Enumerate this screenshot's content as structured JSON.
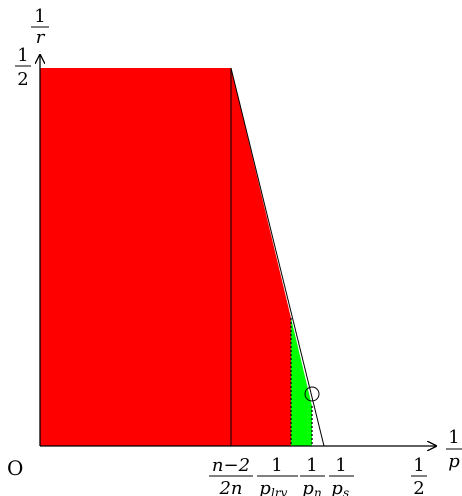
{
  "origin_label": "O",
  "y_axis": {
    "num": "1",
    "den": "r"
  },
  "x_axis": {
    "num": "1",
    "den": "p"
  },
  "y_tick": {
    "num": "1",
    "den": "2"
  },
  "x_ticks": [
    {
      "num": "n−2",
      "den": "2n"
    },
    {
      "num": "1",
      "den_main": "p",
      "den_sub": "lrv"
    },
    {
      "num": "1",
      "den_main": "p",
      "den_sub": "n"
    },
    {
      "num": "1",
      "den_main": "p",
      "den_sub": "s"
    },
    {
      "num": "1",
      "den": "2"
    }
  ],
  "colors": {
    "red_region": "#ff0000",
    "green_region": "#00ff00",
    "lines": "#000000"
  }
}
